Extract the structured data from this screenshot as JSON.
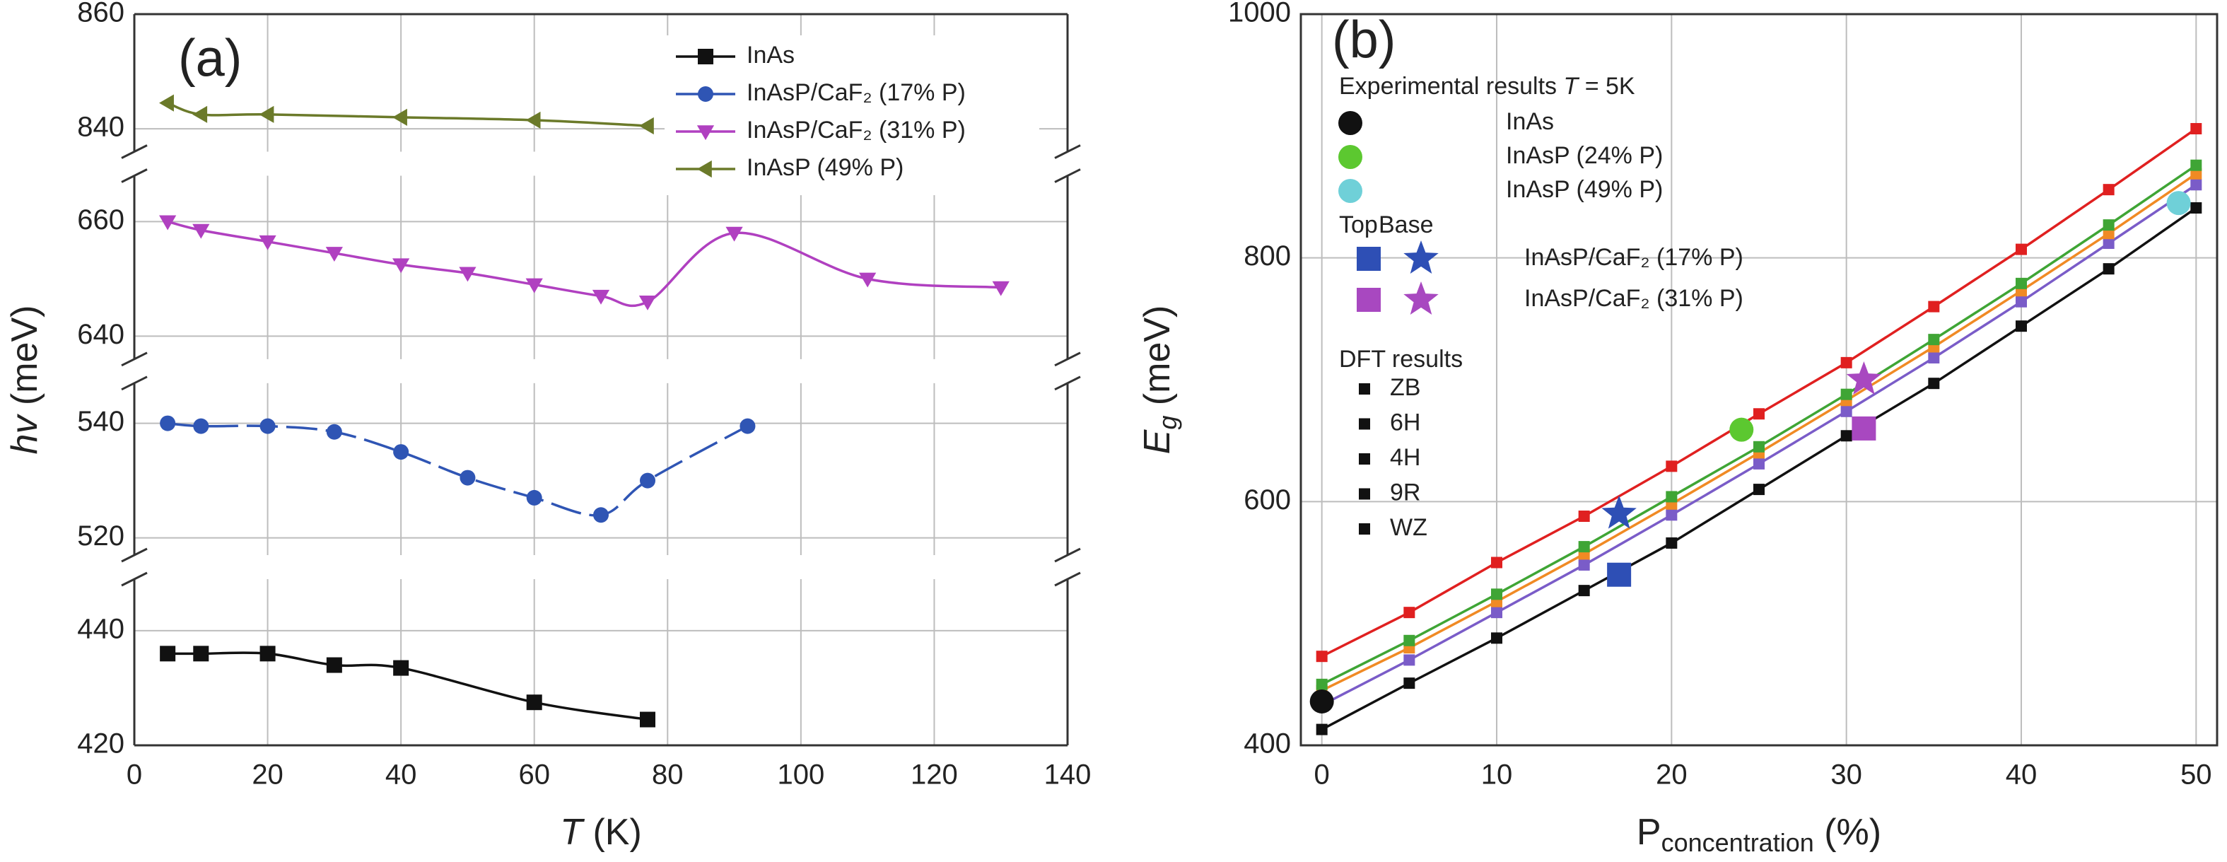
{
  "chart_data": [
    {
      "type": "line",
      "label": "(a)",
      "xlabel": [
        "T",
        " (K)"
      ],
      "ylabel": [
        "hv",
        " (meV)"
      ],
      "xlim": [
        0,
        140
      ],
      "xticks": [
        0,
        20,
        40,
        60,
        80,
        100,
        120,
        140
      ],
      "grid": true,
      "smooth": true,
      "legend": "upper right",
      "y_segments": [
        {
          "ylim": [
            420,
            449
          ],
          "yticks": [
            420,
            440
          ]
        },
        {
          "ylim": [
            517,
            547
          ],
          "yticks": [
            520,
            540
          ]
        },
        {
          "ylim": [
            636,
            668
          ],
          "yticks": [
            640,
            660
          ]
        },
        {
          "ylim": [
            836,
            860
          ],
          "yticks": [
            840,
            860
          ]
        }
      ],
      "series": [
        {
          "name": "InAs",
          "color": "#111111",
          "marker": "square",
          "line_style": "solid",
          "x": [
            5,
            10,
            20,
            30,
            40,
            60,
            77
          ],
          "values": [
            436,
            436,
            436,
            434,
            433.5,
            427.5,
            424.5
          ]
        },
        {
          "name": "InAsP/CaF₂ (17% P)",
          "color": "#2f55b4",
          "marker": "circle",
          "line_style": "dashed",
          "x": [
            5,
            10,
            20,
            30,
            40,
            50,
            60,
            70,
            77,
            92
          ],
          "values": [
            540,
            539.5,
            539.5,
            538.5,
            535,
            530.5,
            527,
            524,
            530,
            539.5
          ]
        },
        {
          "name": "InAsP/CaF₂ (31% P)",
          "color": "#b040c0",
          "marker": "triangle-down",
          "line_style": "solid",
          "x": [
            5,
            10,
            20,
            30,
            40,
            50,
            60,
            70,
            77,
            90,
            110,
            130
          ],
          "values": [
            660,
            658.5,
            656.5,
            654.5,
            652.5,
            651,
            649,
            647,
            646,
            658,
            650,
            648.5
          ]
        },
        {
          "name": "InAsP (49% P)",
          "color": "#6b7a2a",
          "marker": "triangle-left",
          "line_style": "solid",
          "x": [
            5,
            10,
            20,
            40,
            60,
            77
          ],
          "values": [
            844.5,
            842.5,
            842.5,
            842,
            841.5,
            840.5
          ]
        }
      ]
    },
    {
      "type": "line",
      "label": "(b)",
      "xlabel": [
        "P",
        "concentration",
        " (%)"
      ],
      "ylabel": [
        "E",
        "g",
        " (meV)"
      ],
      "xlim": [
        -1.2,
        51.2
      ],
      "ylim": [
        400,
        1000
      ],
      "xticks": [
        0,
        10,
        20,
        30,
        40,
        50
      ],
      "yticks": [
        400,
        600,
        800,
        1000
      ],
      "grid": true,
      "legend": "upper left",
      "legend_marker_color": "#111111",
      "x": [
        0,
        5,
        10,
        15,
        20,
        25,
        30,
        35,
        40,
        45,
        50
      ],
      "series": [
        {
          "name": "ZB",
          "color": "#111111",
          "marker": "square",
          "values": [
            413,
            451,
            488,
            527,
            566,
            610,
            654,
            697,
            744,
            791,
            841
          ]
        },
        {
          "name": "6H",
          "color": "#7a5cc8",
          "marker": "square",
          "values": [
            433,
            470,
            509,
            548,
            589,
            631,
            674,
            718,
            764,
            812,
            860
          ]
        },
        {
          "name": "4H",
          "color": "#f08a24",
          "marker": "square",
          "values": [
            445,
            480,
            518,
            557,
            598,
            640,
            683,
            727,
            773,
            820,
            869
          ]
        },
        {
          "name": "9R",
          "color": "#3fa535",
          "marker": "square",
          "values": [
            450,
            486,
            524,
            563,
            604,
            645,
            688,
            733,
            779,
            827,
            876
          ]
        },
        {
          "name": "WZ",
          "color": "#e02020",
          "marker": "square",
          "values": [
            473,
            509,
            550,
            588,
            629,
            672,
            714,
            760,
            807,
            856,
            906
          ]
        }
      ],
      "dft_title": "DFT results",
      "experimental": {
        "title": [
          "Experimental results ",
          "T",
          " = 5K"
        ],
        "points": [
          {
            "name": "InAs",
            "color": "#111111",
            "x": 0,
            "value": 436
          },
          {
            "name": "InAsP (24% P)",
            "color": "#5cc830",
            "x": 24,
            "value": 659
          },
          {
            "name": "InAsP (49% P)",
            "color": "#6fd0d8",
            "x": 49,
            "value": 845
          }
        ]
      },
      "substrate": {
        "top_label": "Top",
        "base_label": "Base",
        "series": [
          {
            "name": "InAsP/CaF₂ (17% P)",
            "color": "#2e4fb5",
            "x": 17,
            "top": 540,
            "base": 590
          },
          {
            "name": "InAsP/CaF₂ (31% P)",
            "color": "#a848c0",
            "x": 31,
            "top": 660,
            "base": 700
          }
        ]
      }
    }
  ]
}
